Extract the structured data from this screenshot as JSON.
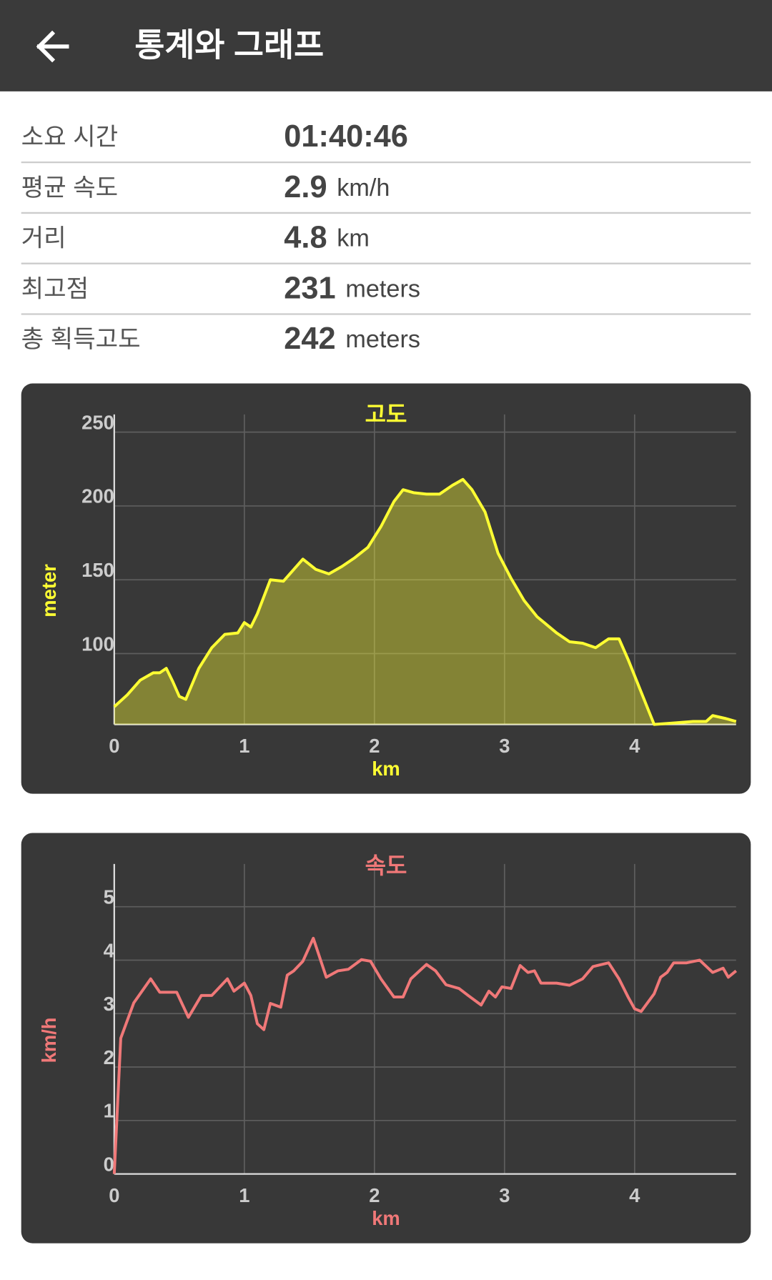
{
  "header": {
    "title": "통계와 그래프"
  },
  "stats": [
    {
      "label": "소요 시간",
      "value": "01:40:46"
    },
    {
      "label": "평균 속도",
      "value": "2.9",
      "unit": "km/h"
    },
    {
      "label": "거리",
      "value": "4.8",
      "unit": "km"
    },
    {
      "label": "최고점",
      "value": "231",
      "unit": "meters"
    },
    {
      "label": "총 획득고도",
      "value": "242",
      "unit": "meters"
    }
  ],
  "chart_data": [
    {
      "type": "area",
      "title": "고도",
      "y_label": "meter",
      "x_label": "km",
      "color": "#ffff33",
      "x": [
        0,
        0.1,
        0.2,
        0.3,
        0.35,
        0.4,
        0.45,
        0.5,
        0.55,
        0.65,
        0.75,
        0.85,
        0.95,
        1.0,
        1.05,
        1.1,
        1.2,
        1.3,
        1.45,
        1.55,
        1.65,
        1.75,
        1.85,
        1.95,
        2.05,
        2.15,
        2.22,
        2.3,
        2.4,
        2.5,
        2.6,
        2.68,
        2.75,
        2.85,
        2.95,
        3.05,
        3.15,
        3.25,
        3.4,
        3.5,
        3.6,
        3.7,
        3.8,
        3.88,
        3.95,
        4.05,
        4.15,
        4.3,
        4.45,
        4.55,
        4.6,
        4.7,
        4.78
      ],
      "values": [
        64,
        72,
        82,
        87,
        87,
        90,
        81,
        71,
        69,
        90,
        104,
        113,
        114,
        121,
        118,
        127,
        150,
        149,
        164,
        157,
        154,
        159,
        165,
        172,
        186,
        203,
        211,
        209,
        208,
        208,
        214,
        218,
        211,
        196,
        168,
        151,
        136,
        125,
        114,
        108,
        107,
        104,
        110,
        110,
        96,
        74,
        52,
        53,
        54,
        54,
        58,
        56,
        54
      ],
      "xlim": [
        0,
        4.78
      ],
      "ylim": [
        52,
        262
      ],
      "xticks": [
        0,
        1,
        2,
        3,
        4
      ],
      "yticks": [
        100,
        150,
        200,
        250
      ],
      "grid": true
    },
    {
      "type": "line",
      "title": "속도",
      "y_label": "km/h",
      "x_label": "km",
      "color": "#f07878",
      "x": [
        0,
        0.05,
        0.15,
        0.28,
        0.35,
        0.48,
        0.57,
        0.67,
        0.75,
        0.87,
        0.92,
        1.0,
        1.05,
        1.1,
        1.15,
        1.2,
        1.28,
        1.33,
        1.38,
        1.45,
        1.53,
        1.63,
        1.72,
        1.8,
        1.9,
        1.97,
        2.05,
        2.15,
        2.22,
        2.28,
        2.4,
        2.47,
        2.55,
        2.65,
        2.72,
        2.82,
        2.88,
        2.93,
        2.98,
        3.05,
        3.12,
        3.18,
        3.23,
        3.28,
        3.4,
        3.5,
        3.6,
        3.68,
        3.8,
        3.88,
        3.95,
        4.0,
        4.05,
        4.15,
        4.2,
        4.25,
        4.3,
        4.4,
        4.5,
        4.6,
        4.68,
        4.72,
        4.78
      ],
      "values": [
        0,
        2.54,
        3.2,
        3.65,
        3.4,
        3.4,
        2.93,
        3.34,
        3.34,
        3.65,
        3.42,
        3.57,
        3.34,
        2.81,
        2.7,
        3.19,
        3.12,
        3.72,
        3.8,
        3.98,
        4.41,
        3.68,
        3.8,
        3.83,
        4.01,
        3.98,
        3.65,
        3.31,
        3.31,
        3.65,
        3.92,
        3.8,
        3.54,
        3.47,
        3.34,
        3.16,
        3.42,
        3.31,
        3.5,
        3.47,
        3.9,
        3.77,
        3.8,
        3.57,
        3.57,
        3.53,
        3.65,
        3.88,
        3.95,
        3.65,
        3.31,
        3.09,
        3.04,
        3.37,
        3.68,
        3.77,
        3.95,
        3.95,
        4.0,
        3.77,
        3.85,
        3.68,
        3.8
      ],
      "xlim": [
        0,
        4.78
      ],
      "ylim": [
        0,
        5.8
      ],
      "xticks": [
        0,
        1,
        2,
        3,
        4
      ],
      "yticks": [
        0,
        1,
        2,
        3,
        4,
        5
      ],
      "grid": true
    }
  ]
}
